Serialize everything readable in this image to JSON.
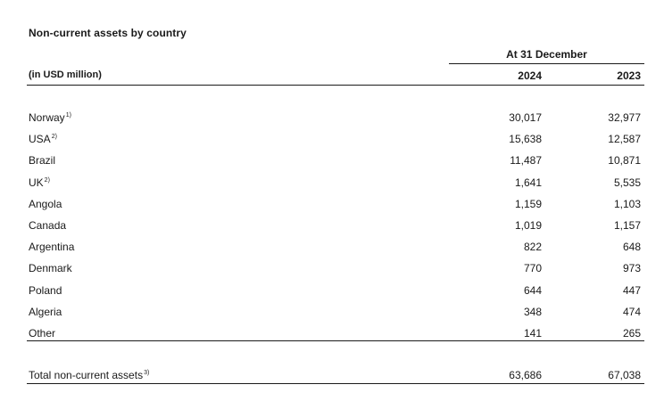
{
  "title": "Non-current assets by country",
  "period_header": "At 31 December",
  "unit_label": "(in USD million)",
  "columns": [
    "2024",
    "2023"
  ],
  "rows": [
    {
      "country": "Norway",
      "note": "1)",
      "y2024": "30,017",
      "y2023": "32,977"
    },
    {
      "country": "USA",
      "note": "2)",
      "y2024": "15,638",
      "y2023": "12,587"
    },
    {
      "country": "Brazil",
      "note": "",
      "y2024": "11,487",
      "y2023": "10,871"
    },
    {
      "country": "UK",
      "note": "2)",
      "y2024": "1,641",
      "y2023": "5,535"
    },
    {
      "country": "Angola",
      "note": "",
      "y2024": "1,159",
      "y2023": "1,103"
    },
    {
      "country": "Canada",
      "note": "",
      "y2024": "1,019",
      "y2023": "1,157"
    },
    {
      "country": "Argentina",
      "note": "",
      "y2024": "822",
      "y2023": "648"
    },
    {
      "country": "Denmark",
      "note": "",
      "y2024": "770",
      "y2023": "973"
    },
    {
      "country": "Poland",
      "note": "",
      "y2024": "644",
      "y2023": "447"
    },
    {
      "country": "Algeria",
      "note": "",
      "y2024": "348",
      "y2023": "474"
    },
    {
      "country": "Other",
      "note": "",
      "y2024": "141",
      "y2023": "265"
    }
  ],
  "total": {
    "label": "Total non-current assets",
    "note": "3)",
    "y2024": "63,686",
    "y2023": "67,038"
  }
}
